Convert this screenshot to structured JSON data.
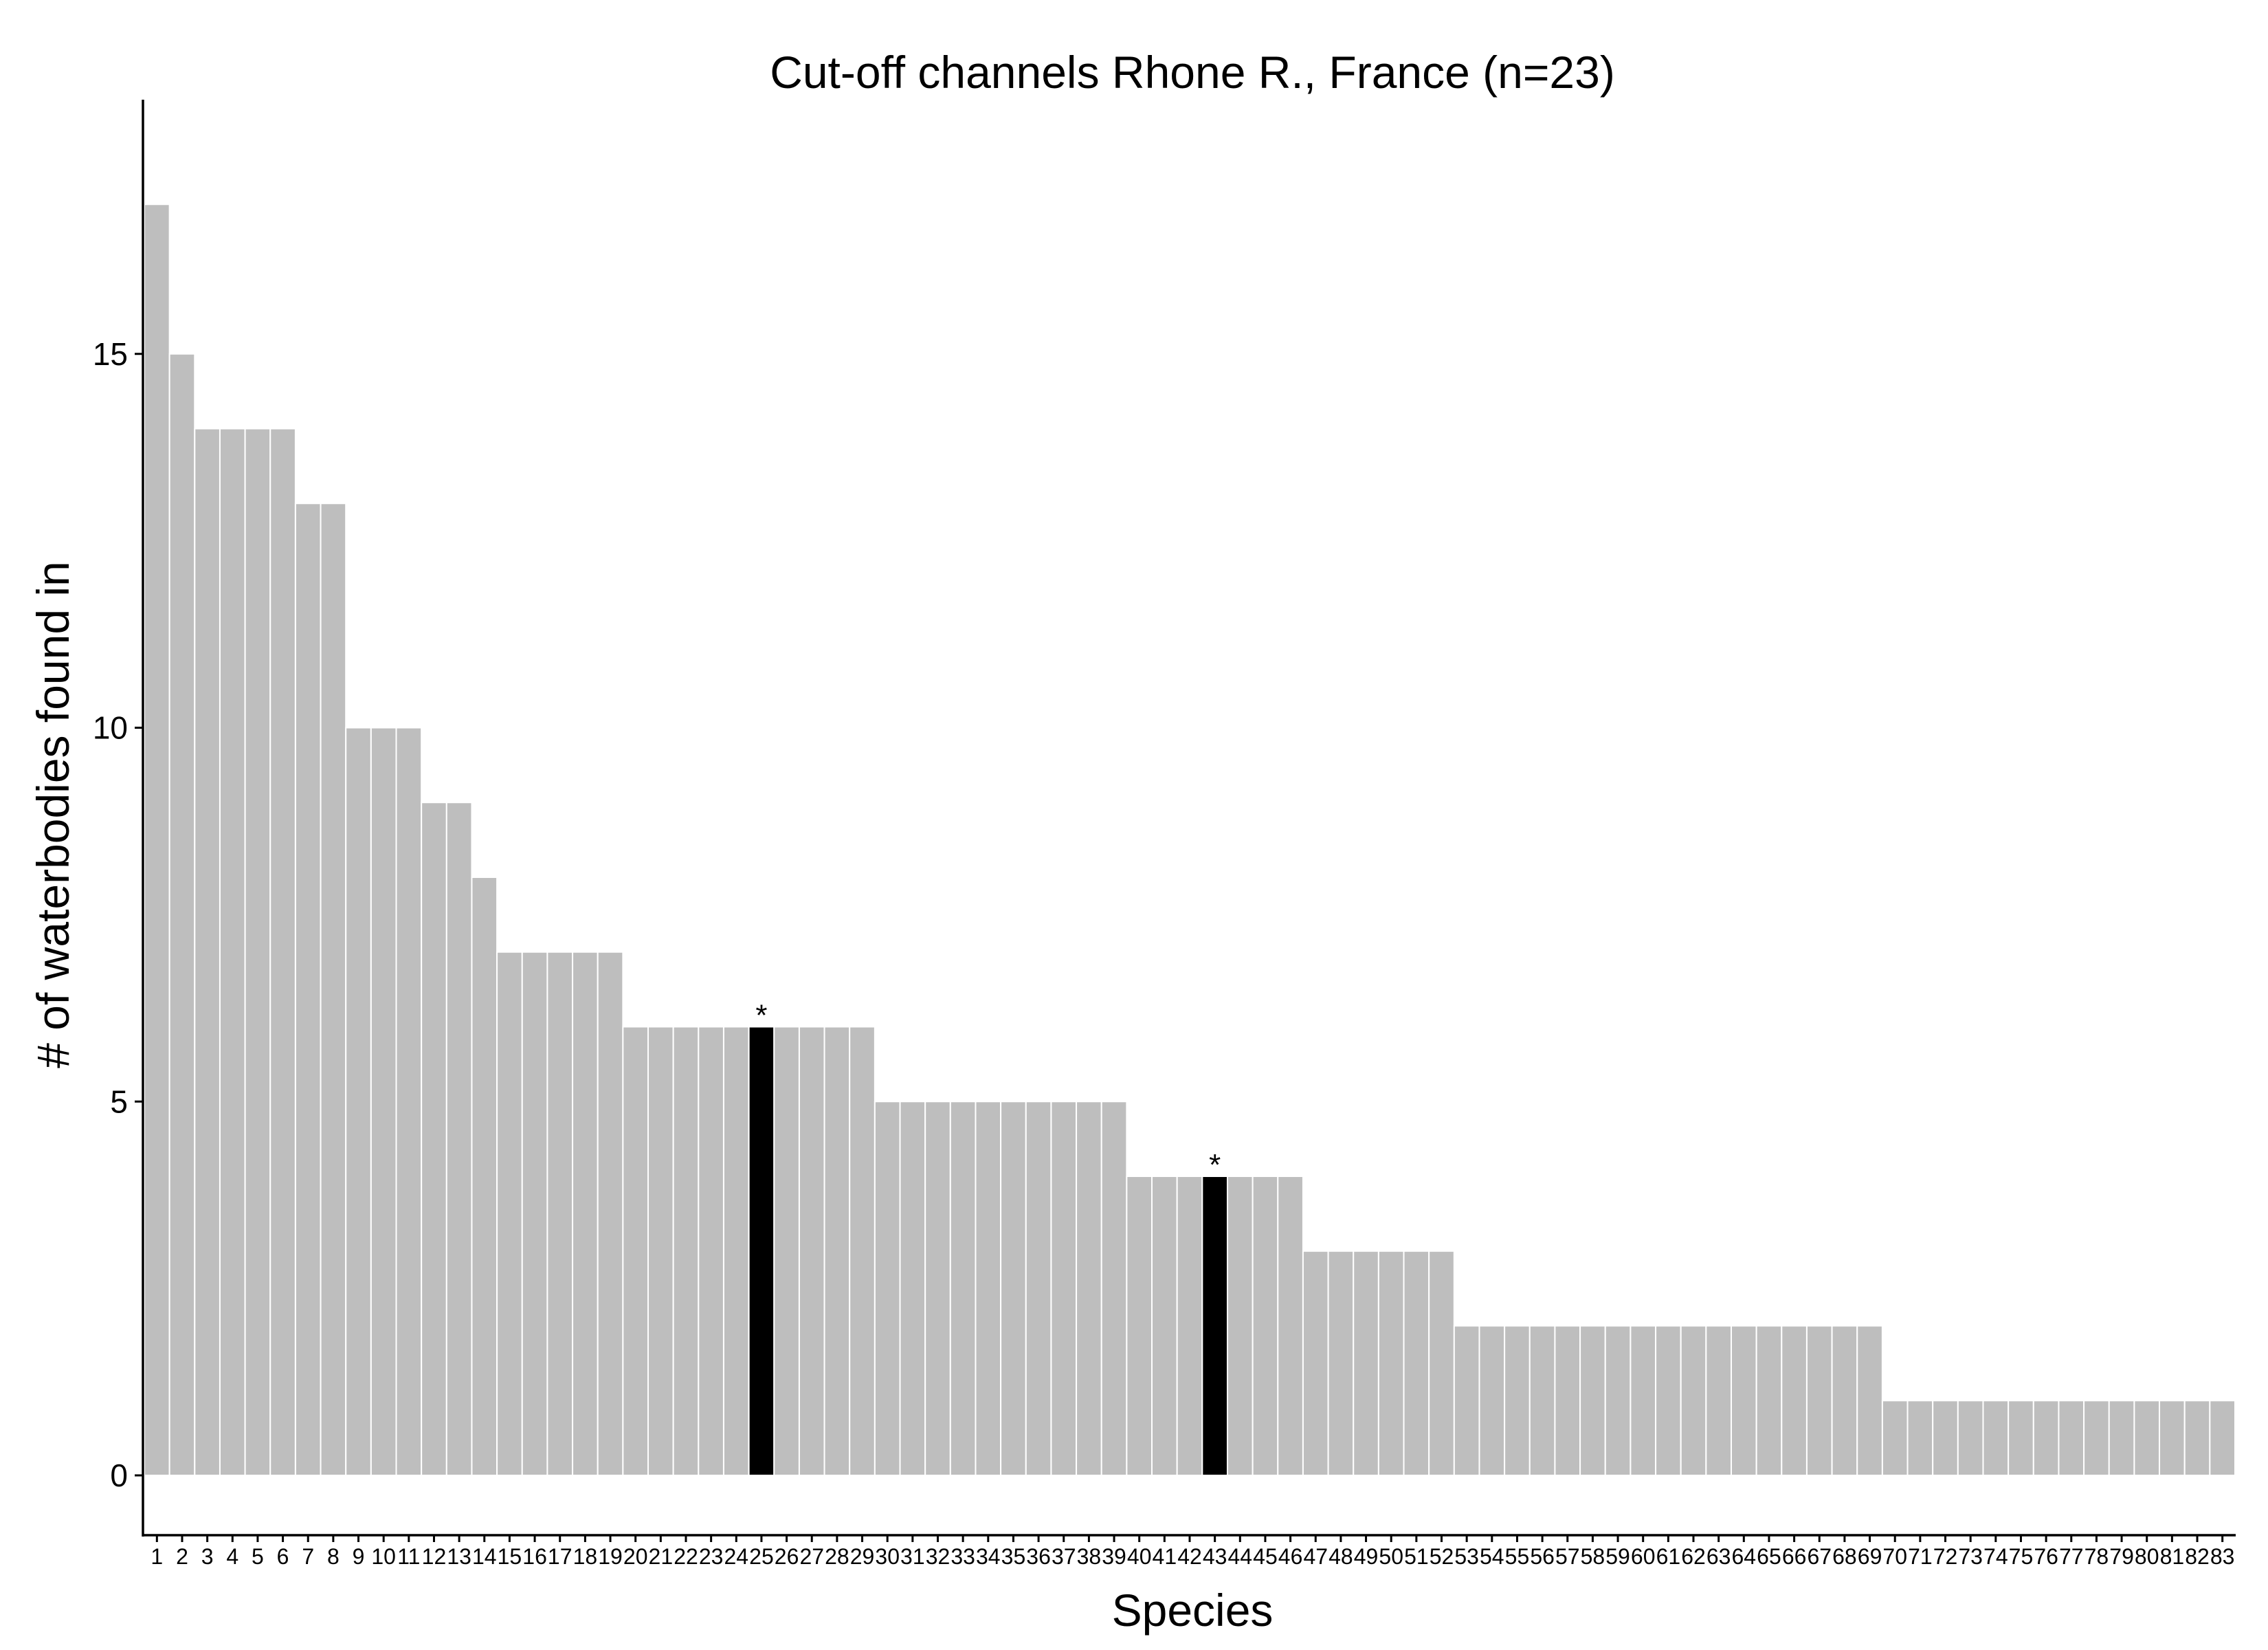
{
  "chart_data": {
    "type": "bar",
    "title": "Cut-off channels Rhone R., France (n=23)",
    "xlabel": "Species",
    "ylabel": "# of waterbodies found in",
    "ylim": [
      -0.8,
      18.4
    ],
    "yticks": [
      0,
      5,
      10,
      15
    ],
    "grid": false,
    "legend": "none",
    "categories": [
      "1",
      "2",
      "3",
      "4",
      "5",
      "6",
      "7",
      "8",
      "9",
      "10",
      "11",
      "12",
      "13",
      "14",
      "15",
      "16",
      "17",
      "18",
      "19",
      "20",
      "21",
      "22",
      "23",
      "24",
      "25",
      "26",
      "27",
      "28",
      "29",
      "30",
      "31",
      "32",
      "33",
      "34",
      "35",
      "36",
      "37",
      "38",
      "39",
      "40",
      "41",
      "42",
      "43",
      "44",
      "45",
      "46",
      "47",
      "48",
      "49",
      "50",
      "51",
      "52",
      "53",
      "54",
      "55",
      "56",
      "57",
      "58",
      "59",
      "60",
      "61",
      "62",
      "63",
      "64",
      "65",
      "66",
      "67",
      "68",
      "69",
      "70",
      "71",
      "72",
      "73",
      "74",
      "75",
      "76",
      "77",
      "78",
      "79",
      "80",
      "81",
      "82",
      "83"
    ],
    "values": [
      17,
      15,
      14,
      14,
      14,
      14,
      13,
      13,
      10,
      10,
      10,
      9,
      9,
      8,
      7,
      7,
      7,
      7,
      7,
      6,
      6,
      6,
      6,
      6,
      6,
      6,
      6,
      6,
      6,
      5,
      5,
      5,
      5,
      5,
      5,
      5,
      5,
      5,
      5,
      4,
      4,
      4,
      4,
      4,
      4,
      4,
      3,
      3,
      3,
      3,
      3,
      3,
      2,
      2,
      2,
      2,
      2,
      2,
      2,
      2,
      2,
      2,
      2,
      2,
      2,
      2,
      2,
      2,
      2,
      1,
      1,
      1,
      1,
      1,
      1,
      1,
      1,
      1,
      1,
      1,
      1,
      1,
      1
    ],
    "highlighted": [
      "25",
      "43"
    ],
    "highlight_label": "*",
    "colors": {
      "bar": "#bebebe",
      "highlight": "#000000"
    }
  }
}
